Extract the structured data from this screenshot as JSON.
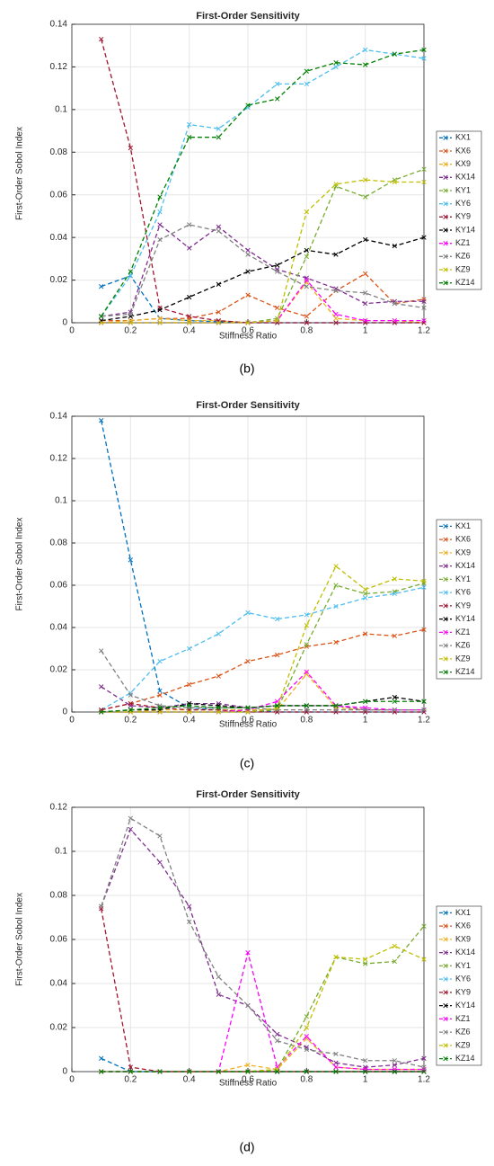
{
  "chart_data": [
    {
      "type": "line",
      "title": "First-Order Sensitivity",
      "xlabel": "Stiffness Ratio",
      "ylabel": "First-Order Sobol Index",
      "caption": "(b)",
      "x": [
        0.1,
        0.2,
        0.3,
        0.4,
        0.5,
        0.6,
        0.7,
        0.8,
        0.9,
        1,
        1.1,
        1.2
      ],
      "xlim": [
        0,
        1.2
      ],
      "xticks": [
        0,
        0.2,
        0.4,
        0.6,
        0.8,
        1,
        1.2
      ],
      "ylim": [
        0,
        0.14
      ],
      "yticks": [
        0,
        0.02,
        0.04,
        0.06,
        0.08,
        0.1,
        0.12,
        0.14
      ],
      "grid": true,
      "legend": "outside-right",
      "series": [
        {
          "name": "KX1",
          "color": "#0072BD",
          "values": [
            0.017,
            0.022,
            0.002,
            0.001,
            0.0005,
            0,
            0,
            0,
            0,
            0,
            0,
            0
          ]
        },
        {
          "name": "KX6",
          "color": "#D95319",
          "values": [
            0.001,
            0.001,
            0.002,
            0.002,
            0.005,
            0.013,
            0.007,
            0.003,
            0.015,
            0.023,
            0.009,
            0.011
          ]
        },
        {
          "name": "KX9",
          "color": "#EDB120",
          "values": [
            0,
            0.001,
            0.002,
            0.001,
            0.001,
            0,
            0.001,
            0.019,
            0.002,
            0.001,
            0.001,
            0
          ]
        },
        {
          "name": "KX14",
          "color": "#7E2F8E",
          "values": [
            0.003,
            0.005,
            0.046,
            0.035,
            0.045,
            0.034,
            0.025,
            0.021,
            0.016,
            0.009,
            0.01,
            0.01
          ]
        },
        {
          "name": "KY1",
          "color": "#77AC30",
          "values": [
            0,
            0,
            0,
            0,
            0,
            0,
            0.002,
            0.031,
            0.064,
            0.059,
            0.067,
            0.072
          ]
        },
        {
          "name": "KY6",
          "color": "#4DBEEE",
          "values": [
            0.003,
            0.022,
            0.052,
            0.093,
            0.091,
            0.101,
            0.112,
            0.112,
            0.12,
            0.128,
            0.126,
            0.124
          ]
        },
        {
          "name": "KY9",
          "color": "#A2142F",
          "values": [
            0.133,
            0.082,
            0.007,
            0.003,
            0.001,
            0,
            0,
            0,
            0,
            0,
            0,
            0
          ]
        },
        {
          "name": "KY14",
          "color": "#000000",
          "values": [
            0.001,
            0.003,
            0.006,
            0.012,
            0.018,
            0.024,
            0.027,
            0.034,
            0.032,
            0.039,
            0.036,
            0.04
          ]
        },
        {
          "name": "KZ1",
          "color": "#FF00FF",
          "values": [
            0,
            0,
            0,
            0,
            0,
            0,
            0.001,
            0.02,
            0.004,
            0.001,
            0.001,
            0.001
          ]
        },
        {
          "name": "KZ6",
          "color": "#808080",
          "values": [
            0.003,
            0.004,
            0.039,
            0.046,
            0.043,
            0.032,
            0.024,
            0.017,
            0.015,
            0.014,
            0.009,
            0.007
          ]
        },
        {
          "name": "KZ9",
          "color": "#BFBF00",
          "values": [
            0,
            0,
            0,
            0,
            0,
            0,
            0.001,
            0.052,
            0.065,
            0.067,
            0.066,
            0.066
          ]
        },
        {
          "name": "KZ14",
          "color": "#008000",
          "values": [
            0.003,
            0.024,
            0.059,
            0.087,
            0.087,
            0.102,
            0.105,
            0.118,
            0.122,
            0.121,
            0.126,
            0.128
          ]
        }
      ]
    },
    {
      "type": "line",
      "title": "First-Order Sensitivity",
      "xlabel": "Stiffness Ratio",
      "ylabel": "First-Order Sobol Index",
      "caption": "(c)",
      "x": [
        0.1,
        0.2,
        0.3,
        0.4,
        0.5,
        0.6,
        0.7,
        0.8,
        0.9,
        1,
        1.1,
        1.2
      ],
      "xlim": [
        0,
        1.2
      ],
      "xticks": [
        0,
        0.2,
        0.4,
        0.6,
        0.8,
        1,
        1.2
      ],
      "ylim": [
        0,
        0.14
      ],
      "yticks": [
        0,
        0.02,
        0.04,
        0.06,
        0.08,
        0.1,
        0.12,
        0.14
      ],
      "grid": true,
      "legend": "outside-right",
      "series": [
        {
          "name": "KX1",
          "color": "#0072BD",
          "values": [
            0.138,
            0.072,
            0.01,
            0.002,
            0.001,
            0.001,
            0,
            0,
            0,
            0,
            0,
            0
          ]
        },
        {
          "name": "KX6",
          "color": "#D95319",
          "values": [
            0.001,
            0.004,
            0.008,
            0.013,
            0.017,
            0.024,
            0.027,
            0.031,
            0.033,
            0.037,
            0.036,
            0.039
          ]
        },
        {
          "name": "KX9",
          "color": "#EDB120",
          "values": [
            0,
            0,
            0.001,
            0.001,
            0.001,
            0.001,
            0.001,
            0.018,
            0.002,
            0.001,
            0.001,
            0.001
          ]
        },
        {
          "name": "KX14",
          "color": "#7E2F8E",
          "values": [
            0.012,
            0.003,
            0.002,
            0.004,
            0.004,
            0.002,
            0.003,
            0.003,
            0.003,
            0.001,
            0.001,
            0.001
          ]
        },
        {
          "name": "KY1",
          "color": "#77AC30",
          "values": [
            0,
            0,
            0,
            0,
            0,
            0,
            0.001,
            0.032,
            0.06,
            0.056,
            0.057,
            0.061
          ]
        },
        {
          "name": "KY6",
          "color": "#4DBEEE",
          "values": [
            0.001,
            0.009,
            0.024,
            0.03,
            0.037,
            0.047,
            0.044,
            0.046,
            0.05,
            0.054,
            0.056,
            0.059
          ]
        },
        {
          "name": "KY9",
          "color": "#A2142F",
          "values": [
            0.001,
            0.004,
            0.002,
            0.001,
            0.001,
            0,
            0,
            0,
            0,
            0,
            0,
            0
          ]
        },
        {
          "name": "KY14",
          "color": "#000000",
          "values": [
            0,
            0.001,
            0.001,
            0.004,
            0.003,
            0.002,
            0.003,
            0.003,
            0.003,
            0.005,
            0.007,
            0.005
          ]
        },
        {
          "name": "KZ1",
          "color": "#FF00FF",
          "values": [
            0,
            0,
            0,
            0,
            0,
            0.001,
            0.005,
            0.019,
            0.003,
            0.002,
            0.001,
            0.001
          ]
        },
        {
          "name": "KZ6",
          "color": "#808080",
          "values": [
            0.029,
            0.008,
            0.003,
            0.002,
            0.002,
            0.002,
            0.001,
            0.001,
            0.001,
            0.001,
            0.001,
            0.001
          ]
        },
        {
          "name": "KZ9",
          "color": "#BFBF00",
          "values": [
            0,
            0,
            0,
            0,
            0,
            0,
            0.002,
            0.041,
            0.069,
            0.058,
            0.063,
            0.062
          ]
        },
        {
          "name": "KZ14",
          "color": "#008000",
          "values": [
            0,
            0.001,
            0.002,
            0.003,
            0.002,
            0.002,
            0.003,
            0.003,
            0.003,
            0.005,
            0.005,
            0.005
          ]
        }
      ]
    },
    {
      "type": "line",
      "title": "First-Order Sensitivity",
      "xlabel": "Stiffness Ratio",
      "ylabel": "First-Order Sobol Index",
      "caption": "(d)",
      "x": [
        0.1,
        0.2,
        0.3,
        0.4,
        0.5,
        0.6,
        0.7,
        0.8,
        0.9,
        1,
        1.1,
        1.2
      ],
      "xlim": [
        0,
        1.2
      ],
      "xticks": [
        0,
        0.2,
        0.4,
        0.6,
        0.8,
        1,
        1.2
      ],
      "ylim": [
        0,
        0.12
      ],
      "yticks": [
        0,
        0.02,
        0.04,
        0.06,
        0.08,
        0.1,
        0.12
      ],
      "grid": true,
      "legend": "outside-right",
      "series": [
        {
          "name": "KX1",
          "color": "#0072BD",
          "values": [
            0.006,
            0,
            0,
            0,
            0,
            0,
            0,
            0,
            0,
            0,
            0,
            0
          ]
        },
        {
          "name": "KX6",
          "color": "#D95319",
          "values": [
            0,
            0,
            0,
            0,
            0,
            0,
            0,
            0,
            0,
            0,
            0,
            0
          ]
        },
        {
          "name": "KX9",
          "color": "#EDB120",
          "values": [
            0,
            0,
            0,
            0,
            0,
            0.003,
            0.001,
            0.015,
            0.002,
            0.001,
            0.001,
            0.001
          ]
        },
        {
          "name": "KX14",
          "color": "#7E2F8E",
          "values": [
            0.075,
            0.11,
            0.095,
            0.075,
            0.035,
            0.03,
            0.017,
            0.011,
            0.004,
            0.002,
            0.003,
            0.006
          ]
        },
        {
          "name": "KY1",
          "color": "#77AC30",
          "values": [
            0,
            0,
            0,
            0,
            0,
            0,
            0.001,
            0.025,
            0.052,
            0.049,
            0.05,
            0.066
          ]
        },
        {
          "name": "KY6",
          "color": "#4DBEEE",
          "values": [
            0,
            0,
            0,
            0,
            0,
            0,
            0,
            0,
            0,
            0,
            0,
            0
          ]
        },
        {
          "name": "KY9",
          "color": "#A2142F",
          "values": [
            0.074,
            0.002,
            0,
            0,
            0,
            0,
            0,
            0,
            0,
            0,
            0,
            0
          ]
        },
        {
          "name": "KY14",
          "color": "#000000",
          "values": [
            0,
            0,
            0,
            0,
            0,
            0,
            0,
            0,
            0,
            0,
            0,
            0
          ]
        },
        {
          "name": "KZ1",
          "color": "#FF00FF",
          "values": [
            0,
            0,
            0,
            0,
            0,
            0.054,
            0.002,
            0.016,
            0.002,
            0.001,
            0.001,
            0.001
          ]
        },
        {
          "name": "KZ6",
          "color": "#808080",
          "values": [
            0.075,
            0.115,
            0.107,
            0.068,
            0.043,
            0.03,
            0.014,
            0.01,
            0.008,
            0.005,
            0.005,
            0.002
          ]
        },
        {
          "name": "KZ9",
          "color": "#BFBF00",
          "values": [
            0,
            0,
            0,
            0,
            0,
            0,
            0.001,
            0.02,
            0.052,
            0.051,
            0.057,
            0.051
          ]
        },
        {
          "name": "KZ14",
          "color": "#008000",
          "values": [
            0,
            0,
            0,
            0,
            0,
            0,
            0,
            0,
            0,
            0,
            0,
            0
          ]
        }
      ]
    }
  ]
}
